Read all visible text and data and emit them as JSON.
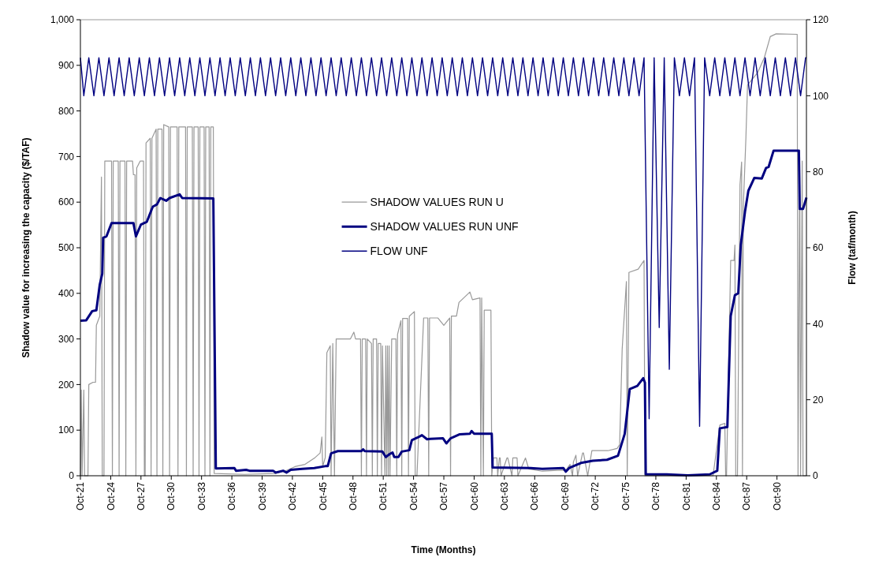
{
  "chart_data": {
    "type": "line",
    "xlabel": "Time (Months)",
    "ylabel": "Shadow value for increasing the capacity ($/TAF)",
    "y2label": "Flow (taf/month)",
    "xlim": [
      "1921-10",
      "1993-09"
    ],
    "xticks": [
      {
        "value": "1921-10",
        "label": "Oct-21"
      },
      {
        "value": "1924-10",
        "label": "Oct-24"
      },
      {
        "value": "1927-10",
        "label": "Oct-27"
      },
      {
        "value": "1930-10",
        "label": "Oct-30"
      },
      {
        "value": "1933-10",
        "label": "Oct-33"
      },
      {
        "value": "1936-10",
        "label": "Oct-36"
      },
      {
        "value": "1939-10",
        "label": "Oct-39"
      },
      {
        "value": "1942-10",
        "label": "Oct-42"
      },
      {
        "value": "1945-10",
        "label": "Oct-45"
      },
      {
        "value": "1948-10",
        "label": "Oct-48"
      },
      {
        "value": "1951-10",
        "label": "Oct-51"
      },
      {
        "value": "1954-10",
        "label": "Oct-54"
      },
      {
        "value": "1957-10",
        "label": "Oct-57"
      },
      {
        "value": "1960-10",
        "label": "Oct-60"
      },
      {
        "value": "1963-10",
        "label": "Oct-63"
      },
      {
        "value": "1966-10",
        "label": "Oct-66"
      },
      {
        "value": "1969-10",
        "label": "Oct-69"
      },
      {
        "value": "1972-10",
        "label": "Oct-72"
      },
      {
        "value": "1975-10",
        "label": "Oct-75"
      },
      {
        "value": "1978-10",
        "label": "Oct-78"
      },
      {
        "value": "1981-10",
        "label": "Oct-81"
      },
      {
        "value": "1984-10",
        "label": "Oct-84"
      },
      {
        "value": "1987-10",
        "label": "Oct-87"
      },
      {
        "value": "1990-10",
        "label": "Oct-90"
      }
    ],
    "ylim": [
      0,
      1000
    ],
    "yticks": [
      0,
      100,
      200,
      300,
      400,
      500,
      600,
      700,
      800,
      900,
      {
        "value": 1000,
        "label": "1,000"
      }
    ],
    "y2lim": [
      0,
      120
    ],
    "y2ticks": [
      0,
      20,
      40,
      60,
      80,
      100,
      120
    ],
    "grid": false,
    "legend": "center",
    "line_style": "solid",
    "series": [
      {
        "name": "SHADOW VALUES RUN U",
        "color": "#999999",
        "x": [
          "1921-10",
          "1921-11",
          "1921-12",
          "1922-02",
          "1922-03",
          "1922-07",
          "1922-08",
          "1923-01",
          "1923-04",
          "1923-05",
          "1923-09",
          "1923-11",
          "1923-12",
          "1924-02",
          "1924-03",
          "1924-11",
          "1924-12",
          "1925-01",
          "1925-07",
          "1925-08",
          "1925-09",
          "1926-03",
          "1926-04",
          "1926-05",
          "1926-12",
          "1927-01",
          "1927-03",
          "1927-04",
          "1927-05",
          "1927-09",
          "1928-01",
          "1928-02",
          "1928-03",
          "1928-04",
          "1928-09",
          "1928-10",
          "1928-11",
          "1929-04",
          "1929-05",
          "1929-06",
          "1929-11",
          "1929-12",
          "1930-01",
          "1930-07",
          "1930-08",
          "1930-09",
          "1931-05",
          "1931-06",
          "1931-07",
          "1932-03",
          "1932-04",
          "1932-05",
          "1932-11",
          "1932-12",
          "1933-01",
          "1933-06",
          "1933-07",
          "1933-08",
          "1934-01",
          "1934-02",
          "1934-03",
          "1934-07",
          "1934-08",
          "1934-09",
          "1934-12",
          "1935-01",
          "1938-01",
          "1941-01",
          "1942-01",
          "1943-01",
          "1944-01",
          "1945-01",
          "1945-07",
          "1945-09",
          "1945-10",
          "1946-01",
          "1946-03",
          "1946-07",
          "1946-08",
          "1946-10",
          "1946-12",
          "1947-02",
          "1948-07",
          "1948-11",
          "1949-01",
          "1949-07",
          "1949-08",
          "1949-09",
          "1950-01",
          "1950-02",
          "1950-03",
          "1950-08",
          "1950-09",
          "1950-10",
          "1951-02",
          "1951-03",
          "1951-04",
          "1951-07",
          "1951-08",
          "1951-09",
          "1951-12",
          "1952-01",
          "1952-02",
          "1952-03",
          "1952-04",
          "1952-05",
          "1952-06",
          "1952-08",
          "1953-01",
          "1953-02",
          "1953-03",
          "1953-07",
          "1953-08",
          "1953-09",
          "1954-03",
          "1954-04",
          "1954-05",
          "1954-11",
          "1954-12",
          "1955-02",
          "1955-10",
          "1956-03",
          "1956-04",
          "1956-05",
          "1957-03",
          "1957-10",
          "1958-05",
          "1958-06",
          "1958-07",
          "1959-01",
          "1959-04",
          "1960-05",
          "1960-08",
          "1961-05",
          "1961-06",
          "1961-07",
          "1961-09",
          "1961-10",
          "1962-03",
          "1962-06",
          "1962-07",
          "1962-09",
          "1963-01",
          "1963-02",
          "1963-04",
          "1963-05",
          "1963-06",
          "1964-01",
          "1964-02",
          "1964-07",
          "1964-08",
          "1965-01",
          "1965-02",
          "1965-11",
          "1966-03",
          "1967-07",
          "1969-01",
          "1969-11",
          "1970-04",
          "1970-07",
          "1970-08",
          "1970-11",
          "1971-01",
          "1971-07",
          "1971-08",
          "1972-01",
          "1972-06",
          "1974-01",
          "1974-12",
          "1975-03",
          "1975-06",
          "1975-11",
          "1975-12",
          "1976-02",
          "1977-01",
          "1977-08",
          "1977-09",
          "1984-06",
          "1985-02",
          "1985-08",
          "1985-09",
          "1985-10",
          "1986-03",
          "1986-07",
          "1986-08",
          "1986-09",
          "1986-11",
          "1987-02",
          "1987-04",
          "1987-05",
          "1987-06",
          "1987-09",
          "1987-11",
          "1988-11",
          "1989-07",
          "1990-02",
          "1990-09",
          "1992-10",
          "1992-11",
          "1993-01",
          "1993-02",
          "1993-04",
          "1993-05",
          "1993-09"
        ],
        "values": [
          0,
          188,
          0,
          188,
          0,
          0,
          200,
          205,
          205,
          330,
          350,
          655,
          0,
          0,
          690,
          690,
          0,
          690,
          690,
          0,
          690,
          690,
          0,
          690,
          690,
          660,
          660,
          0,
          675,
          690,
          690,
          0,
          0,
          730,
          740,
          0,
          740,
          760,
          0,
          760,
          760,
          0,
          770,
          765,
          0,
          765,
          765,
          0,
          765,
          765,
          0,
          765,
          765,
          0,
          765,
          765,
          0,
          765,
          765,
          0,
          765,
          765,
          0,
          765,
          765,
          5,
          3,
          5,
          10,
          20,
          25,
          40,
          50,
          85,
          20,
          40,
          270,
          285,
          0,
          290,
          0,
          300,
          300,
          315,
          300,
          300,
          0,
          300,
          300,
          0,
          300,
          290,
          0,
          300,
          300,
          0,
          290,
          290,
          0,
          285,
          0,
          285,
          0,
          285,
          0,
          285,
          0,
          300,
          300,
          0,
          310,
          340,
          0,
          345,
          345,
          0,
          350,
          360,
          0,
          0,
          346,
          346,
          0,
          346,
          346,
          330,
          346,
          0,
          350,
          350,
          380,
          403,
          386,
          390,
          0,
          390,
          0,
          363,
          363,
          363,
          0,
          39,
          39,
          0,
          39,
          39,
          0,
          39,
          39,
          0,
          39,
          39,
          0,
          39,
          15,
          10,
          12,
          12,
          25,
          0,
          30,
          45,
          0,
          50,
          50,
          0,
          55,
          55,
          60,
          68,
          277,
          426,
          0,
          446,
          453,
          472,
          0,
          0,
          111,
          115,
          0,
          0,
          472,
          472,
          506,
          0,
          0,
          638,
          688,
          0,
          590,
          738,
          857,
          884,
          917,
          963,
          969,
          968,
          0,
          700,
          0,
          690,
          0,
          0
        ]
      },
      {
        "name": "SHADOW VALUES RUN UNF",
        "color": "#000080",
        "x": [
          "1921-10",
          "1922-05",
          "1922-12",
          "1923-05",
          "1923-09",
          "1923-12",
          "1924-01",
          "1924-05",
          "1924-11",
          "1927-01",
          "1927-04",
          "1927-10",
          "1928-05",
          "1928-12",
          "1929-05",
          "1929-09",
          "1930-04",
          "1930-08",
          "1931-08",
          "1931-11",
          "1934-12",
          "1935-03",
          "1937-01",
          "1937-03",
          "1938-03",
          "1938-07",
          "1940-11",
          "1941-02",
          "1941-11",
          "1942-03",
          "1942-08",
          "1943-10",
          "1944-05",
          "1944-12",
          "1946-01",
          "1946-04",
          "1946-08",
          "1947-04",
          "1949-08",
          "1949-10",
          "1949-12",
          "1951-09",
          "1952-01",
          "1952-06",
          "1952-09",
          "1952-11",
          "1953-04",
          "1953-08",
          "1954-05",
          "1954-08",
          "1955-03",
          "1955-08",
          "1956-02",
          "1956-06",
          "1957-09",
          "1958-01",
          "1958-06",
          "1959-05",
          "1960-05",
          "1960-07",
          "1960-10",
          "1962-07",
          "1962-08",
          "1966-05",
          "1967-07",
          "1969-08",
          "1969-11",
          "1970-03",
          "1971-05",
          "1972-07",
          "1973-12",
          "1975-01",
          "1975-09",
          "1976-03",
          "1976-12",
          "1977-07",
          "1977-09",
          "1977-10",
          "1979-11",
          "1981-12",
          "1984-02",
          "1984-11",
          "1985-02",
          "1985-11",
          "1986-03",
          "1986-08",
          "1986-12",
          "1987-03",
          "1987-08",
          "1987-12",
          "1988-07",
          "1989-04",
          "1989-09",
          "1989-12",
          "1990-06",
          "1992-12",
          "1993-01",
          "1993-05",
          "1993-09"
        ],
        "values": [
          340,
          341,
          361,
          363,
          419,
          443,
          522,
          525,
          554,
          554,
          525,
          551,
          557,
          590,
          595,
          609,
          603,
          609,
          617,
          609,
          608,
          16,
          17,
          11,
          13,
          11,
          11,
          7,
          11,
          7,
          13,
          15,
          16,
          17,
          21,
          21,
          49,
          54,
          54,
          58,
          54,
          53,
          41,
          48,
          51,
          41,
          41,
          53,
          56,
          78,
          84,
          89,
          80,
          81,
          82,
          71,
          82,
          91,
          92,
          98,
          92,
          92,
          18,
          17,
          15,
          17,
          9,
          17,
          28,
          33,
          35,
          44,
          92,
          190,
          197,
          214,
          204,
          3,
          3,
          1,
          3,
          11,
          104,
          107,
          350,
          396,
          400,
          506,
          579,
          625,
          653,
          652,
          675,
          677,
          713,
          713,
          585,
          585,
          610
        ]
      },
      {
        "name": "FLOW UNF",
        "color": "#000080",
        "axis": "y2",
        "x": [
          "1921-10",
          "1922-02",
          "1922-08",
          "1923-02",
          "1923-08",
          "1924-02",
          "1924-08",
          "1925-02",
          "1925-08",
          "1926-02",
          "1926-08",
          "1927-02",
          "1927-08",
          "1928-02",
          "1928-08",
          "1929-02",
          "1929-08",
          "1930-02",
          "1930-08",
          "1931-02",
          "1931-08",
          "1932-02",
          "1932-08",
          "1933-02",
          "1933-08",
          "1934-02",
          "1934-08",
          "1935-02",
          "1935-08",
          "1936-02",
          "1936-08",
          "1937-02",
          "1937-08",
          "1938-02",
          "1938-08",
          "1939-02",
          "1939-08",
          "1940-02",
          "1940-08",
          "1941-02",
          "1941-08",
          "1942-02",
          "1942-08",
          "1943-02",
          "1943-08",
          "1944-02",
          "1944-08",
          "1945-02",
          "1945-08",
          "1946-02",
          "1946-08",
          "1947-02",
          "1947-08",
          "1948-02",
          "1948-08",
          "1949-02",
          "1949-08",
          "1950-02",
          "1950-08",
          "1951-02",
          "1951-08",
          "1952-02",
          "1952-08",
          "1953-02",
          "1953-08",
          "1954-02",
          "1954-08",
          "1955-02",
          "1955-08",
          "1956-02",
          "1956-08",
          "1957-02",
          "1957-08",
          "1958-02",
          "1958-08",
          "1959-02",
          "1959-08",
          "1960-02",
          "1960-08",
          "1961-02",
          "1961-08",
          "1962-02",
          "1962-08",
          "1963-02",
          "1963-08",
          "1964-02",
          "1964-08",
          "1965-02",
          "1965-08",
          "1966-02",
          "1966-08",
          "1967-02",
          "1967-08",
          "1968-02",
          "1968-08",
          "1969-02",
          "1969-08",
          "1970-02",
          "1970-08",
          "1971-02",
          "1971-08",
          "1972-02",
          "1972-08",
          "1973-02",
          "1973-08",
          "1974-02",
          "1974-08",
          "1975-02",
          "1975-08",
          "1976-02",
          "1976-08",
          "1977-02",
          "1977-08",
          "1978-02",
          "1978-08",
          "1979-02",
          "1979-08",
          "1980-02",
          "1980-08",
          "1981-02",
          "1981-08",
          "1982-02",
          "1982-08",
          "1983-02",
          "1983-08",
          "1984-02",
          "1984-08",
          "1985-02",
          "1985-08",
          "1986-02",
          "1986-08",
          "1987-02",
          "1987-08",
          "1988-02",
          "1988-08",
          "1989-02",
          "1989-08",
          "1990-02",
          "1990-08",
          "1991-02",
          "1991-08",
          "1992-02",
          "1992-08",
          "1993-02",
          "1993-08",
          "1993-09"
        ],
        "values": [
          110,
          100,
          110,
          100,
          110,
          100,
          110,
          100,
          110,
          100,
          110,
          100,
          110,
          100,
          110,
          100,
          110,
          100,
          110,
          100,
          110,
          100,
          110,
          100,
          110,
          100,
          110,
          100,
          110,
          100,
          110,
          100,
          110,
          100,
          110,
          100,
          110,
          100,
          110,
          100,
          110,
          100,
          110,
          100,
          110,
          100,
          110,
          100,
          110,
          100,
          110,
          100,
          110,
          100,
          110,
          100,
          110,
          100,
          110,
          100,
          110,
          100,
          110,
          100,
          110,
          100,
          110,
          100,
          110,
          100,
          110,
          100,
          110,
          100,
          110,
          100,
          110,
          100,
          110,
          100,
          110,
          100,
          110,
          100,
          110,
          100,
          110,
          100,
          110,
          100,
          110,
          100,
          110,
          100,
          110,
          100,
          110,
          100,
          110,
          100,
          110,
          100,
          110,
          100,
          110,
          100,
          110,
          100,
          110,
          100,
          110,
          100,
          110,
          15,
          110,
          39,
          110,
          28,
          110,
          100,
          110,
          100,
          110,
          13,
          110,
          100,
          110,
          100,
          110,
          100,
          110,
          100,
          110,
          100,
          110,
          100,
          110,
          100,
          110,
          100,
          110,
          100,
          110,
          100,
          110,
          110
        ]
      }
    ]
  }
}
